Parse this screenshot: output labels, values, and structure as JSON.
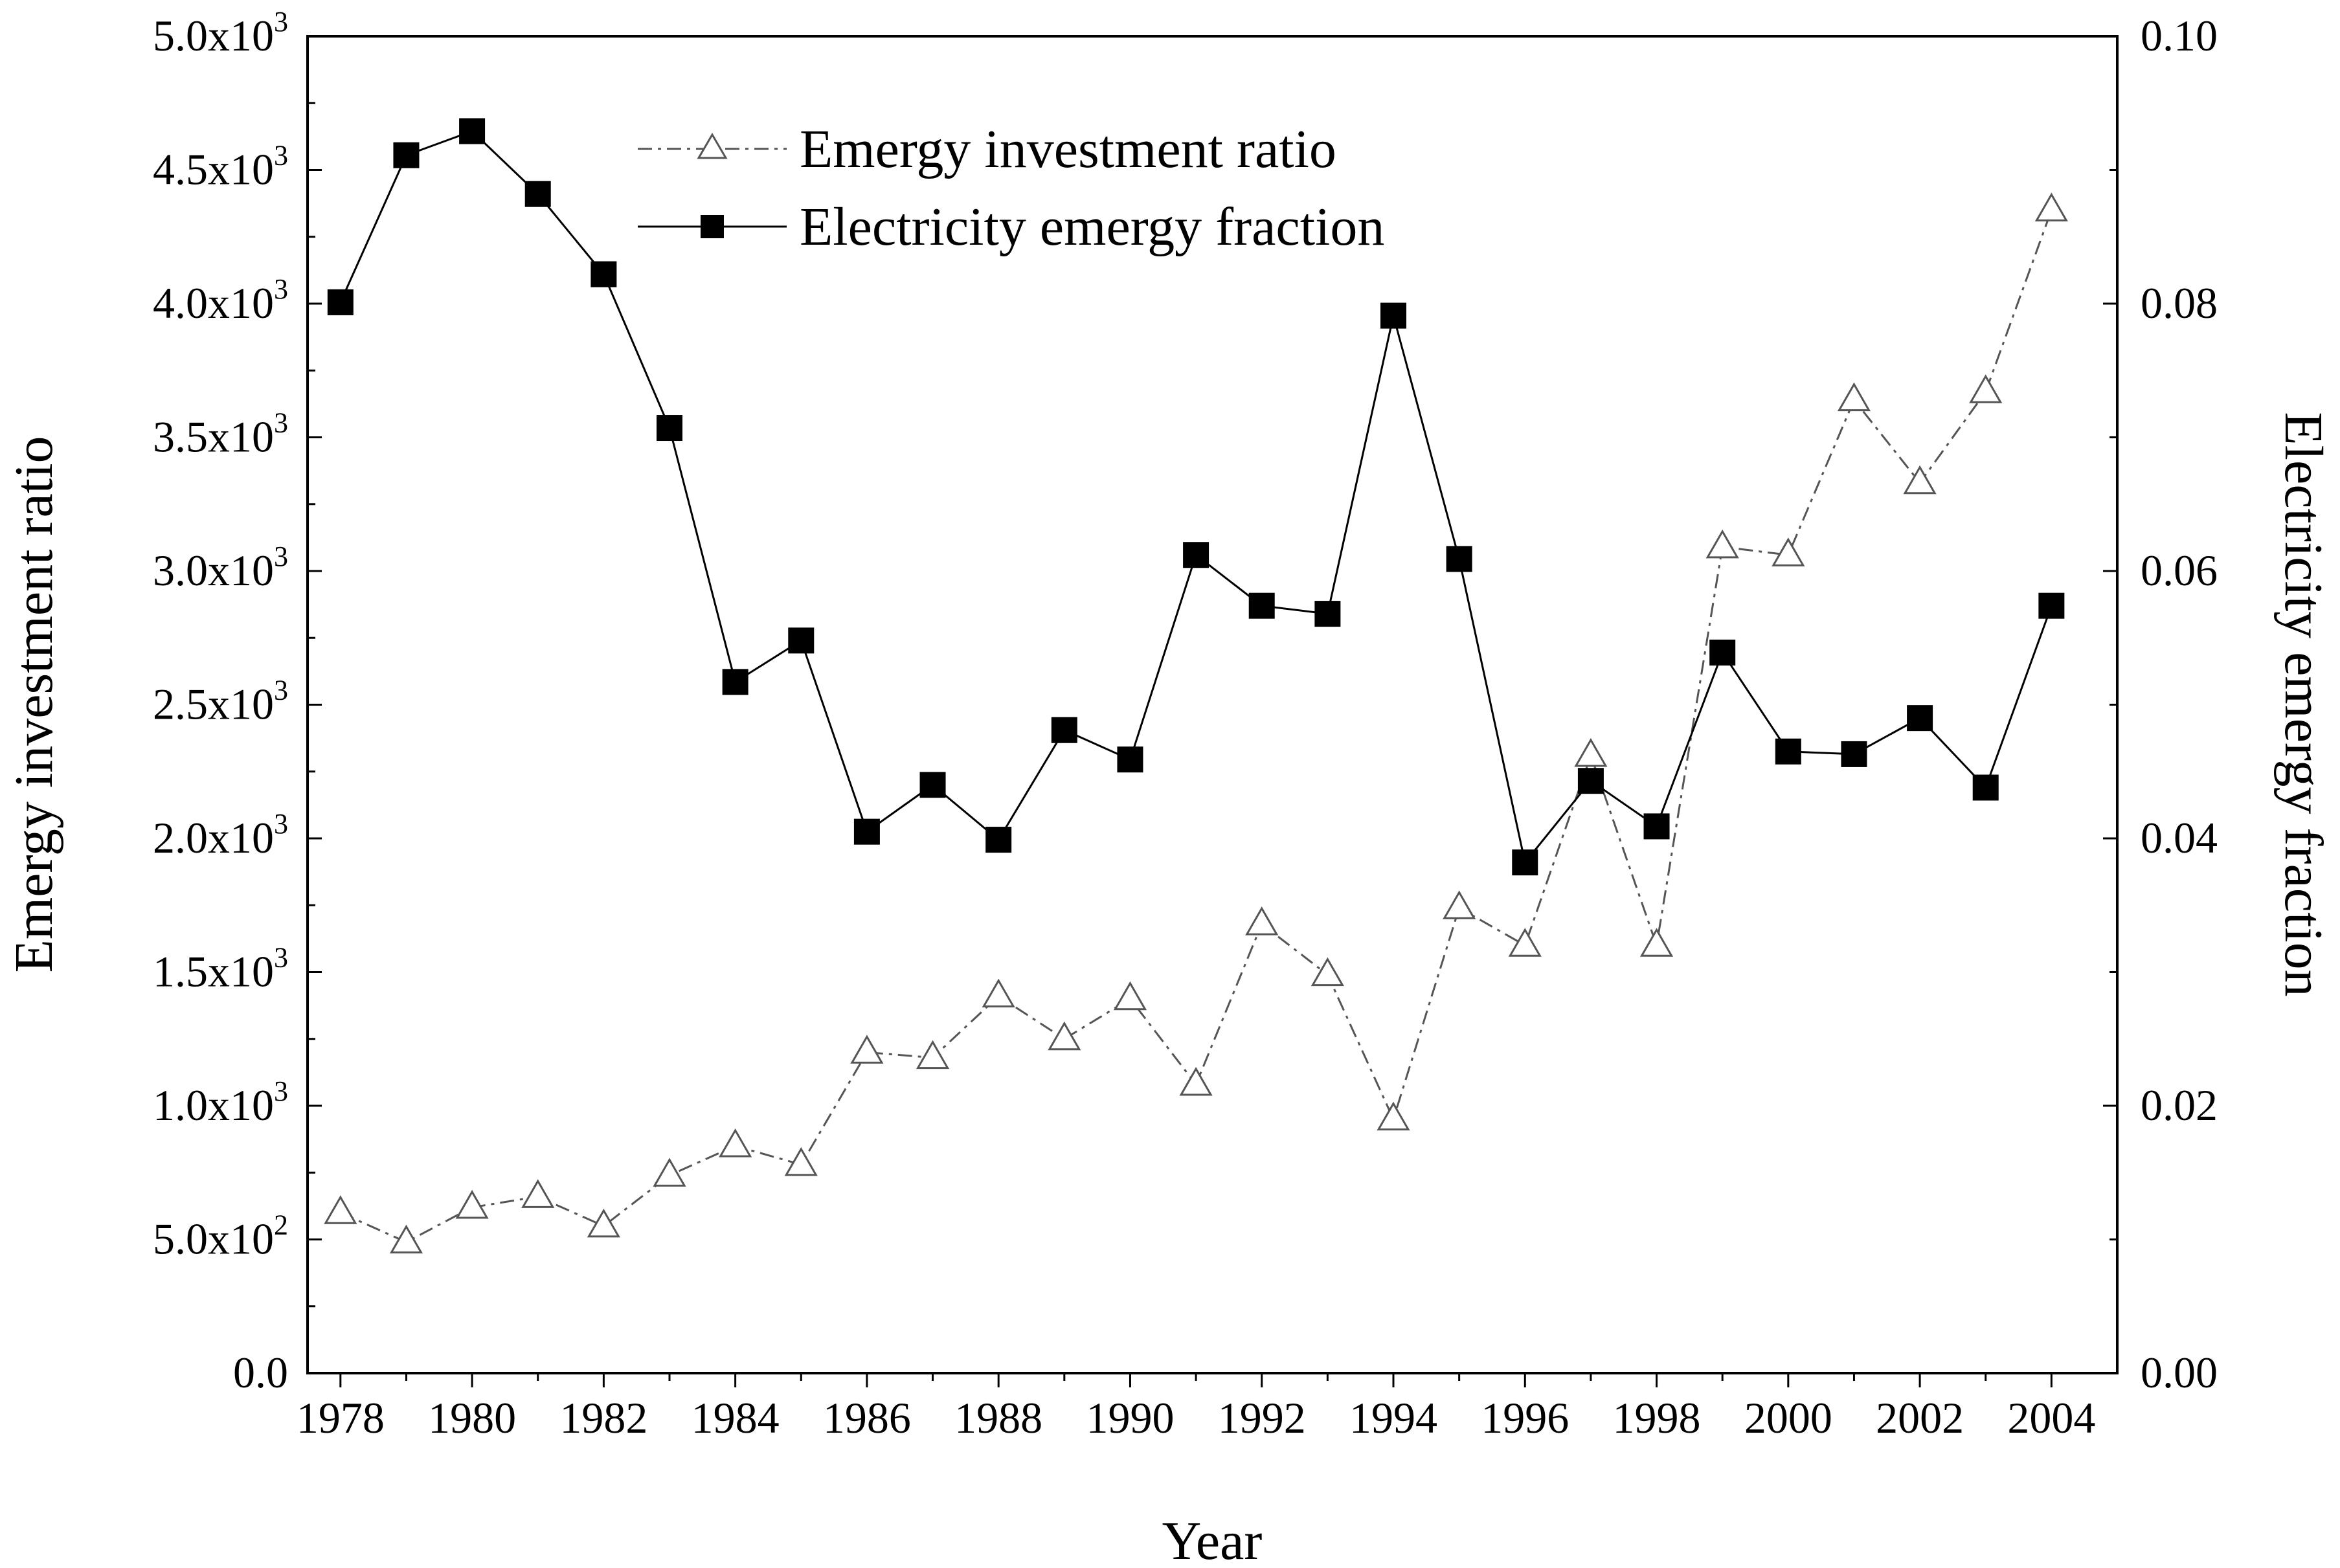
{
  "chart_data": {
    "type": "line",
    "title": "",
    "xlabel": "Year",
    "ylabel_left": "Emergy investment ratio",
    "ylabel_right": "Electricity emergy fraction",
    "x": [
      1978,
      1979,
      1980,
      1981,
      1982,
      1983,
      1984,
      1985,
      1986,
      1987,
      1988,
      1989,
      1990,
      1991,
      1992,
      1993,
      1994,
      1995,
      1996,
      1997,
      1998,
      1999,
      2000,
      2001,
      2002,
      2003,
      2004
    ],
    "xlim": [
      1977.5,
      2005
    ],
    "x_tick_labels": [
      "1978",
      "1980",
      "1982",
      "1984",
      "1986",
      "1988",
      "1990",
      "1992",
      "1994",
      "1996",
      "1998",
      "2000",
      "2002",
      "2004"
    ],
    "ylim_left": [
      0,
      5000
    ],
    "ylim_right": [
      0,
      0.1
    ],
    "y_left_tick_labels": [
      {
        "mantissa": "0.0",
        "exp": ""
      },
      {
        "mantissa": "5.0x10",
        "exp": "2"
      },
      {
        "mantissa": "1.0x10",
        "exp": "3"
      },
      {
        "mantissa": "1.5x10",
        "exp": "3"
      },
      {
        "mantissa": "2.0x10",
        "exp": "3"
      },
      {
        "mantissa": "2.5x10",
        "exp": "3"
      },
      {
        "mantissa": "3.0x10",
        "exp": "3"
      },
      {
        "mantissa": "3.5x10",
        "exp": "3"
      },
      {
        "mantissa": "4.0x10",
        "exp": "3"
      },
      {
        "mantissa": "4.5x10",
        "exp": "3"
      },
      {
        "mantissa": "5.0x10",
        "exp": "3"
      }
    ],
    "y_right_tick_labels": [
      "0.00",
      "0.02",
      "0.04",
      "0.06",
      "0.08",
      "0.10"
    ],
    "grid": false,
    "legend_position": "top-center",
    "series": [
      {
        "name": "Emergy investment ratio",
        "axis": "left",
        "marker": "open-triangle",
        "line_style": "dash-dot",
        "color": "#555555",
        "values": [
          600,
          490,
          620,
          660,
          550,
          740,
          850,
          780,
          1200,
          1180,
          1410,
          1250,
          1400,
          1080,
          1680,
          1490,
          950,
          1740,
          1600,
          2310,
          1600,
          3090,
          3060,
          3640,
          3330,
          3670,
          4350
        ]
      },
      {
        "name": "Electricity emergy fraction",
        "axis": "right",
        "marker": "filled-square",
        "line_style": "solid",
        "color": "#000000",
        "values": [
          0.0801,
          0.0911,
          0.0929,
          0.0882,
          0.0822,
          0.0707,
          0.0517,
          0.0548,
          0.0405,
          0.044,
          0.0399,
          0.0481,
          0.0459,
          0.0612,
          0.0574,
          0.0568,
          0.0791,
          0.0609,
          0.0382,
          0.0443,
          0.0409,
          0.0539,
          0.0465,
          0.0463,
          0.049,
          0.0438,
          0.0574
        ]
      }
    ]
  }
}
